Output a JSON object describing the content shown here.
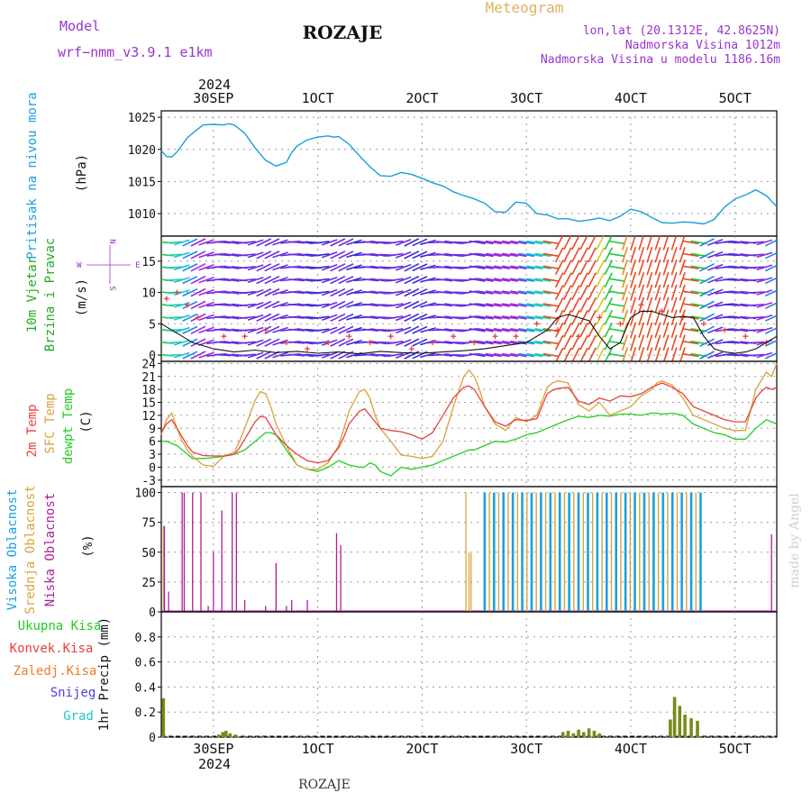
{
  "header": {
    "model_label": "Model",
    "model_name": "wrf−nmm_v3.9.1  e1km",
    "station": "ROZAJE",
    "product": "Meteogram",
    "lonlat": "lon,lat (20.1312E, 42.8625N)",
    "elevation": "Nadmorska Visina 1012m",
    "model_elevation": "Nadmorska Visina u modelu 1186.16m",
    "year": "2024",
    "footer_station": "ROZAJE",
    "watermark": "made by Angel"
  },
  "colors": {
    "pressure": "#1a9fdc",
    "temp2m": "#e8403c",
    "sfctemp": "#d9a23a",
    "dewpt": "#22cc22",
    "cloud_high": "#1aa0e0",
    "cloud_mid": "#d6a53c",
    "cloud_low": "#b01d9a",
    "precip_total": "#7a8a1a",
    "precip_conv": "#e8403c",
    "precip_frz": "#ee7a22",
    "precip_snow": "#4a3ee0",
    "precip_grad": "#22c8c8",
    "wind_label": "#22aa22",
    "axis_left_label": "#1aa0e0",
    "compass": "#9a33cc"
  },
  "x_axis": {
    "ticks": [
      {
        "day": 0.0,
        "top": "30SEP",
        "bottom": "30SEP"
      },
      {
        "day": 1.0,
        "top": "1OCT",
        "bottom": "1OCT"
      },
      {
        "day": 2.0,
        "top": "2OCT",
        "bottom": "2OCT"
      },
      {
        "day": 3.0,
        "top": "3OCT",
        "bottom": "3OCT"
      },
      {
        "day": 4.0,
        "top": "4OCT",
        "bottom": "4OCT"
      },
      {
        "day": 5.0,
        "top": "5OCT",
        "bottom": "5OCT"
      }
    ],
    "range": [
      -0.5,
      5.4
    ]
  },
  "chart_data": [
    {
      "type": "line",
      "panel": "pressure",
      "ylabel_left": "Pritisak na nivou mora",
      "ylabel_unit": "(hPa)",
      "ylim": [
        1006.5,
        1026
      ],
      "yticks": [
        1010,
        1015,
        1020,
        1025
      ],
      "x": [
        -0.5,
        -0.45,
        -0.4,
        -0.35,
        -0.3,
        -0.25,
        -0.2,
        -0.1,
        0.0,
        0.1,
        0.15,
        0.2,
        0.3,
        0.4,
        0.5,
        0.6,
        0.7,
        0.75,
        0.8,
        0.9,
        1.0,
        1.1,
        1.15,
        1.2,
        1.3,
        1.4,
        1.5,
        1.6,
        1.7,
        1.8,
        1.9,
        2.0,
        2.1,
        2.2,
        2.3,
        2.4,
        2.5,
        2.6,
        2.7,
        2.8,
        2.9,
        3.0,
        3.1,
        3.2,
        3.3,
        3.4,
        3.5,
        3.6,
        3.7,
        3.8,
        3.9,
        4.0,
        4.1,
        4.2,
        4.3,
        4.4,
        4.5,
        4.6,
        4.7,
        4.8,
        4.9,
        5.0,
        5.1,
        5.2,
        5.3,
        5.4
      ],
      "series": [
        {
          "values": [
            1019.8,
            1018.9,
            1018.8,
            1019.6,
            1020.7,
            1021.8,
            1022.5,
            1023.8,
            1023.9,
            1023.8,
            1024.0,
            1023.8,
            1022.5,
            1020.2,
            1018.3,
            1017.4,
            1018.0,
            1019.5,
            1020.5,
            1021.5,
            1021.9,
            1022.1,
            1021.9,
            1022.0,
            1020.8,
            1019.0,
            1017.3,
            1015.9,
            1015.8,
            1016.4,
            1016.1,
            1015.5,
            1014.8,
            1014.3,
            1013.4,
            1012.8,
            1012.3,
            1011.6,
            1010.3,
            1010.2,
            1011.8,
            1011.6,
            1010.0,
            1009.8,
            1009.2,
            1009.2,
            1008.8,
            1009.0,
            1009.3,
            1008.9,
            1009.6,
            1010.7,
            1010.3,
            1009.4,
            1008.6,
            1008.5,
            1008.7,
            1008.6,
            1008.4,
            1009.1,
            1011.0,
            1012.3,
            1012.9,
            1013.7,
            1012.8,
            1011.1
          ]
        }
      ]
    },
    {
      "type": "scatter",
      "panel": "wind",
      "ylabel_left_1": "10m Vjetar",
      "ylabel_left_2": "Brzina i Pravac",
      "ylabel_unit": "(m/s)",
      "compass": {
        "n": "N",
        "s": "S",
        "e": "E",
        "w": "W"
      },
      "ylim": [
        -1,
        19
      ],
      "yticks": [
        0,
        5,
        10,
        15
      ],
      "gust_x": [
        -0.45,
        -0.35,
        -0.25,
        -0.15,
        0.1,
        0.3,
        0.5,
        0.7,
        0.9,
        1.1,
        1.3,
        1.5,
        1.7,
        1.9,
        2.1,
        2.3,
        2.5,
        2.7,
        2.9,
        3.1,
        3.3,
        3.5,
        3.7,
        3.9,
        4.1,
        4.3,
        4.5,
        4.7,
        4.9,
        5.1,
        5.3
      ],
      "gust_y": [
        9,
        10,
        8,
        6,
        3,
        3,
        4,
        2,
        1,
        2,
        3,
        2,
        3,
        1,
        2,
        3,
        2,
        3,
        3,
        5,
        4,
        3,
        6,
        5,
        8,
        7,
        6,
        5,
        4,
        3,
        2
      ],
      "mean_x": [
        -0.5,
        -0.4,
        -0.3,
        -0.2,
        -0.1,
        0.0,
        0.2,
        0.4,
        0.6,
        0.8,
        1.0,
        1.2,
        1.4,
        1.6,
        1.8,
        2.0,
        2.2,
        2.4,
        2.6,
        2.8,
        3.0,
        3.2,
        3.3,
        3.4,
        3.5,
        3.6,
        3.7,
        3.8,
        3.9,
        4.0,
        4.1,
        4.2,
        4.3,
        4.4,
        4.5,
        4.6,
        4.7,
        4.8,
        4.9,
        5.0,
        5.1,
        5.2,
        5.3,
        5.4
      ],
      "mean_y": [
        5,
        4,
        3,
        2,
        1.5,
        1,
        0.5,
        0.8,
        0.4,
        0.6,
        0.3,
        0.5,
        0.2,
        0.6,
        0.4,
        0.3,
        0.5,
        0.7,
        1,
        1.5,
        2,
        4,
        6,
        6.5,
        6,
        5.5,
        3,
        1,
        2,
        6,
        7,
        7,
        6.5,
        6,
        6.2,
        6,
        3,
        1,
        0.5,
        0.3,
        0.5,
        1,
        2,
        3
      ],
      "barb_cols": 75,
      "barb_rows": [
        0,
        2,
        4,
        6,
        8,
        10,
        12,
        14,
        16,
        18
      ]
    },
    {
      "type": "line",
      "panel": "temperature",
      "ylabel_left_1": "2m Temp",
      "ylabel_left_2": "SFC Temp",
      "ylabel_left_3": "dewpt Temp",
      "ylabel_unit": "(C)",
      "ylim": [
        -4.5,
        24.5
      ],
      "yticks": [
        -3,
        0,
        3,
        6,
        9,
        12,
        15,
        18,
        21,
        24
      ],
      "x": [
        -0.5,
        -0.45,
        -0.4,
        -0.35,
        -0.3,
        -0.25,
        -0.2,
        -0.1,
        0.0,
        0.1,
        0.2,
        0.25,
        0.3,
        0.4,
        0.45,
        0.5,
        0.55,
        0.6,
        0.7,
        0.8,
        0.9,
        1.0,
        1.1,
        1.2,
        1.25,
        1.3,
        1.4,
        1.45,
        1.5,
        1.55,
        1.6,
        1.7,
        1.8,
        1.9,
        2.0,
        2.1,
        2.2,
        2.3,
        2.4,
        2.45,
        2.5,
        2.55,
        2.6,
        2.7,
        2.8,
        2.9,
        3.0,
        3.1,
        3.2,
        3.25,
        3.3,
        3.4,
        3.5,
        3.6,
        3.7,
        3.8,
        3.9,
        4.0,
        4.1,
        4.2,
        4.25,
        4.3,
        4.4,
        4.5,
        4.6,
        4.7,
        4.8,
        4.9,
        5.0,
        5.1,
        5.2,
        5.25,
        5.3,
        5.35,
        5.4
      ],
      "series": [
        {
          "name": "2m Temp",
          "values": [
            8,
            10,
            11,
            9,
            7,
            5,
            3.5,
            2.7,
            2.6,
            2.6,
            3.0,
            4.5,
            6.5,
            10.5,
            11.8,
            11.5,
            9.5,
            7.5,
            5,
            3.0,
            1.5,
            1.0,
            1.5,
            4.5,
            7,
            10,
            13,
            13.5,
            12,
            10.5,
            9,
            8.5,
            8.2,
            7.5,
            6.5,
            8,
            12,
            16,
            18.5,
            18.8,
            18,
            16,
            14,
            10.5,
            9.5,
            11,
            10.8,
            11.2,
            17,
            17.8,
            18.2,
            18.5,
            15.3,
            14.5,
            16,
            15.3,
            16.5,
            16.3,
            17,
            18.5,
            19,
            19.5,
            18.5,
            17,
            14,
            13,
            12,
            11,
            10.5,
            10.5,
            16,
            17.5,
            18.5,
            18,
            18.5
          ]
        },
        {
          "name": "SFC Temp",
          "values": [
            7.5,
            11,
            12.5,
            9,
            6,
            4,
            2.5,
            0.5,
            0.2,
            2.5,
            3.5,
            6,
            9,
            15.5,
            17.5,
            17,
            14,
            10,
            5,
            0.5,
            -0.5,
            -0.5,
            1,
            5,
            9,
            13,
            17.5,
            18,
            16,
            12,
            9,
            6,
            2.8,
            2.5,
            2.0,
            2.5,
            6,
            14,
            21,
            22.5,
            21,
            18,
            14,
            10,
            8.5,
            11.5,
            10.5,
            12,
            18.5,
            19.5,
            20,
            19.5,
            14.5,
            13,
            15,
            12,
            13,
            14,
            16.5,
            18,
            19.5,
            20,
            19,
            16,
            12,
            11,
            10,
            9,
            8.5,
            8.5,
            18,
            20,
            22,
            21,
            24
          ]
        },
        {
          "name": "dewpt Temp",
          "values": [
            6,
            6,
            5.5,
            5,
            4,
            3,
            2,
            2,
            2.2,
            2.5,
            3,
            3.5,
            4,
            6,
            7,
            8,
            8,
            7.5,
            4,
            0.5,
            -0.5,
            -1,
            0,
            1.5,
            1,
            0.5,
            0,
            0,
            1,
            0.5,
            -1,
            -2,
            0,
            -0.5,
            0,
            0.5,
            1.5,
            2.5,
            3.5,
            4,
            4,
            4.5,
            5,
            6,
            5.8,
            6.5,
            7.5,
            8,
            9,
            9.5,
            10,
            11,
            11.8,
            11.5,
            12,
            11.8,
            12.3,
            12.3,
            12,
            12.5,
            12.5,
            12.3,
            12.5,
            12,
            10,
            9,
            8,
            7.5,
            6.5,
            6.5,
            9,
            10,
            11,
            10.5,
            10
          ]
        }
      ]
    },
    {
      "type": "bar",
      "panel": "clouds",
      "ylabel_left_1": "Visoka Oblacnost",
      "ylabel_left_2": "Srednja Oblacnost",
      "ylabel_left_3": "Niska Oblacnost",
      "ylabel_unit": "(%)",
      "ylim": [
        0,
        105
      ],
      "yticks": [
        0,
        25,
        50,
        75,
        100
      ],
      "low_x": [
        -0.47,
        -0.43,
        -0.3,
        -0.28,
        -0.2,
        -0.12,
        -0.05,
        0.0,
        0.08,
        0.18,
        0.22,
        0.3,
        0.5,
        0.6,
        0.7,
        0.75,
        0.9,
        1.18,
        1.22,
        5.35
      ],
      "low_y": [
        72,
        17,
        100,
        100,
        100,
        100,
        5,
        50,
        85,
        100,
        100,
        10,
        5,
        41,
        5,
        10,
        10,
        66,
        56,
        65
      ],
      "mid_x": [
        -0.48,
        2.42,
        2.45,
        2.47
      ],
      "mid_y": [
        72,
        100,
        50,
        49
      ],
      "dense_start": 2.6,
      "dense_end": 4.7,
      "dense_step": 0.045,
      "dense_value": 100
    },
    {
      "type": "bar",
      "panel": "precip",
      "legend": [
        "Ukupna Kisa",
        "Konvek.Kisa",
        "Zaledj.Kisa",
        "Snijeg",
        "Grad"
      ],
      "ylabel_unit": "1hr Precip (mm)",
      "ylim": [
        0,
        1.0
      ],
      "yticks": [
        0,
        0.2,
        0.4,
        0.6,
        0.8
      ],
      "x": [
        -0.48,
        0.05,
        0.09,
        0.12,
        0.16,
        0.21,
        3.35,
        3.4,
        3.45,
        3.5,
        3.55,
        3.6,
        3.65,
        3.7,
        4.38,
        4.42,
        4.47,
        4.52,
        4.58,
        4.64
      ],
      "values": [
        0.31,
        0.02,
        0.04,
        0.05,
        0.03,
        0.02,
        0.04,
        0.05,
        0.03,
        0.06,
        0.04,
        0.07,
        0.05,
        0.03,
        0.14,
        0.32,
        0.25,
        0.18,
        0.15,
        0.13
      ]
    }
  ]
}
